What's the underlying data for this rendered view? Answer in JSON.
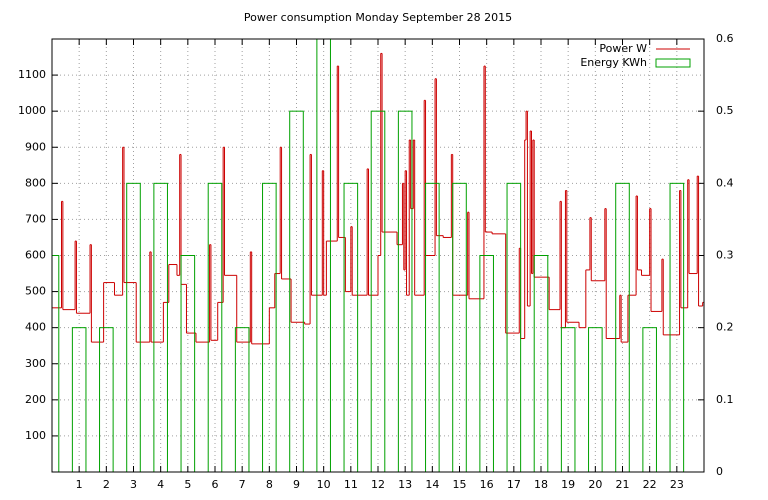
{
  "chart_data": {
    "type": "line",
    "title": "Power consumption Monday September 28 2015",
    "xlim": [
      0,
      24
    ],
    "xticks": [
      1,
      2,
      3,
      4,
      5,
      6,
      7,
      8,
      9,
      10,
      11,
      12,
      13,
      14,
      15,
      16,
      17,
      18,
      19,
      20,
      21,
      22,
      23
    ],
    "ylim": [
      0,
      1200
    ],
    "yticks": [
      100,
      200,
      300,
      400,
      500,
      600,
      700,
      800,
      900,
      1000,
      1100
    ],
    "y2lim": [
      0,
      0.6
    ],
    "y2ticks": [
      0,
      0.1,
      0.2,
      0.3,
      0.4,
      0.5,
      0.6
    ],
    "grid": true,
    "legend": "top-right",
    "series": [
      {
        "name": "Power W",
        "color": "#cc0000",
        "style": "steps",
        "x": [
          0,
          0.35,
          0.4,
          0.85,
          0.9,
          1.4,
          1.45,
          1.9,
          2.3,
          2.6,
          2.65,
          3.1,
          3.6,
          3.65,
          4.1,
          4.3,
          4.6,
          4.7,
          4.75,
          4.95,
          5.3,
          5.8,
          5.85,
          6.1,
          6.3,
          6.35,
          6.8,
          7.3,
          7.35,
          8.0,
          8.2,
          8.4,
          8.45,
          8.8,
          9.3,
          9.5,
          9.55,
          9.95,
          10.0,
          10.1,
          10.5,
          10.55,
          10.8,
          11.0,
          11.05,
          11.6,
          11.65,
          12.0,
          12.1,
          12.15,
          12.7,
          12.9,
          12.95,
          13.0,
          13.05,
          13.15,
          13.2,
          13.3,
          13.35,
          13.7,
          13.75,
          14.1,
          14.15,
          14.4,
          14.7,
          14.75,
          15.3,
          15.35,
          15.9,
          15.95,
          16.2,
          16.7,
          17.2,
          17.25,
          17.4,
          17.45,
          17.5,
          17.6,
          17.65,
          17.7,
          17.75,
          18.3,
          18.7,
          18.75,
          18.9,
          18.95,
          19.4,
          19.65,
          19.8,
          19.85,
          20.35,
          20.4,
          20.9,
          20.95,
          21.2,
          21.5,
          21.55,
          21.7,
          22.0,
          22.05,
          22.45,
          22.5,
          23.1,
          23.15,
          23.4,
          23.45,
          23.75,
          23.8,
          23.95
        ],
        "values": [
          455,
          750,
          450,
          640,
          440,
          630,
          360,
          525,
          490,
          900,
          525,
          360,
          610,
          360,
          470,
          575,
          545,
          880,
          520,
          385,
          360,
          630,
          365,
          470,
          900,
          545,
          360,
          610,
          355,
          455,
          550,
          900,
          535,
          415,
          410,
          880,
          490,
          835,
          490,
          640,
          1125,
          650,
          500,
          680,
          490,
          840,
          490,
          600,
          1160,
          665,
          630,
          800,
          560,
          835,
          490,
          920,
          730,
          920,
          490,
          1030,
          600,
          1090,
          655,
          650,
          880,
          490,
          720,
          480,
          1125,
          665,
          660,
          385,
          620,
          370,
          920,
          1000,
          460,
          945,
          550,
          920,
          540,
          450,
          750,
          400,
          780,
          415,
          400,
          560,
          705,
          530,
          730,
          370,
          490,
          360,
          490,
          765,
          560,
          545,
          730,
          445,
          590,
          380,
          780,
          455,
          810,
          550,
          820,
          460,
          470
        ]
      },
      {
        "name": "Energy KWh",
        "color": "#00a000",
        "style": "boxes",
        "axis": "y2",
        "x": [
          0,
          1,
          2,
          3,
          4,
          5,
          6,
          7,
          8,
          9,
          10,
          11,
          12,
          13,
          14,
          15,
          16,
          17,
          18,
          19,
          20,
          21,
          22,
          23
        ],
        "values": [
          0.3,
          0.2,
          0.2,
          0.4,
          0.4,
          0.3,
          0.4,
          0.2,
          0.4,
          0.5,
          0.6,
          0.4,
          0.5,
          0.5,
          0.4,
          0.4,
          0.3,
          0.4,
          0.3,
          0.2,
          0.2,
          0.4,
          0.2,
          0.4
        ]
      }
    ]
  }
}
